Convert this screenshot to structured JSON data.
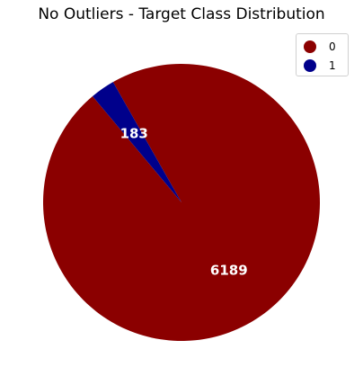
{
  "chart_data": {
    "type": "pie",
    "title": "No Outliers - Target Class Distribution",
    "categories": [
      "0",
      "1"
    ],
    "values": [
      6189,
      183
    ],
    "labels": [
      "6189",
      "183"
    ],
    "colors": [
      "#8b0000",
      "#00008b"
    ],
    "legend_position": "top-right",
    "start_angle_deg": 130,
    "direction": "counterclockwise"
  }
}
